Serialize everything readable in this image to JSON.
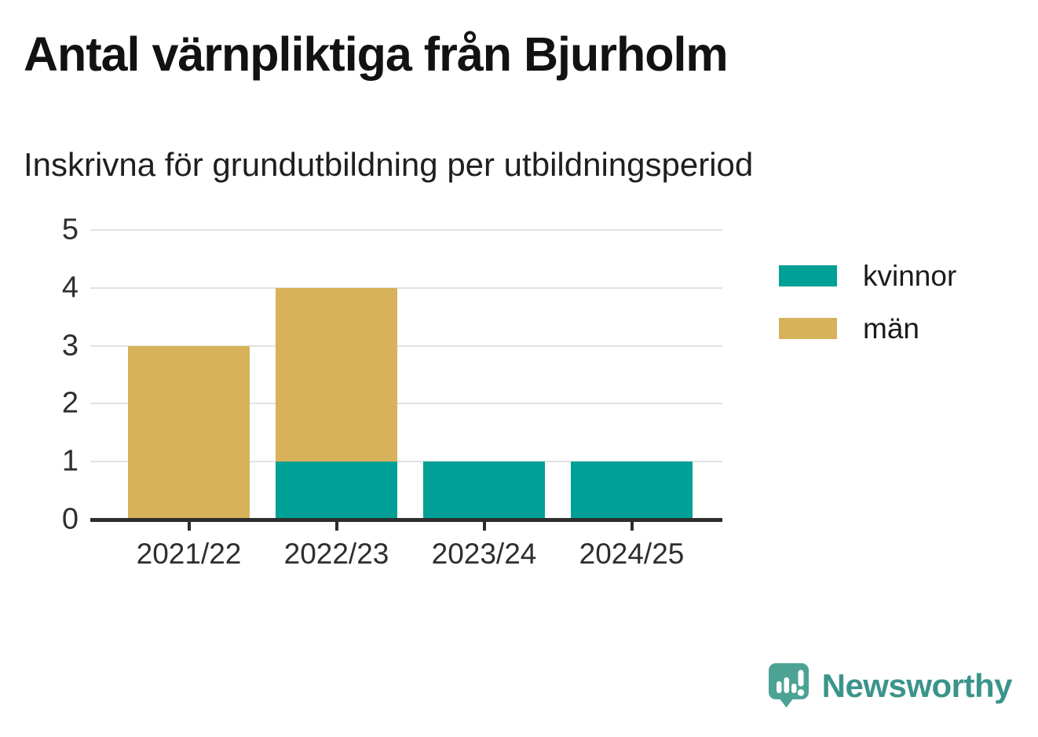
{
  "header": {
    "title": "Antal värnpliktiga från Bjurholm",
    "subtitle": "Inskrivna för grundutbildning per utbildningsperiod"
  },
  "chart_data": {
    "type": "bar",
    "stacked": true,
    "title": "Antal värnpliktiga från Bjurholm",
    "subtitle": "Inskrivna för grundutbildning per utbildningsperiod",
    "categories": [
      "2021/22",
      "2022/23",
      "2023/24",
      "2024/25"
    ],
    "series": [
      {
        "name": "kvinnor",
        "color": "#00a096",
        "values": [
          0,
          1,
          1,
          1
        ]
      },
      {
        "name": "män",
        "color": "#d8b25a",
        "values": [
          3,
          3,
          0,
          0
        ]
      }
    ],
    "totals": [
      3,
      4,
      1,
      1
    ],
    "xlabel": "",
    "ylabel": "",
    "ylim": [
      0,
      5
    ],
    "yticks": [
      0,
      1,
      2,
      3,
      4,
      5
    ],
    "grid": true,
    "legend_position": "right",
    "axis_color": "#2d2d2d",
    "gridline_color": "#e2e2e2"
  },
  "legend": {
    "items": [
      {
        "label": "kvinnor",
        "color": "#00a096"
      },
      {
        "label": "män",
        "color": "#d8b25a"
      }
    ]
  },
  "footer": {
    "brand": "Newsworthy",
    "brand_color": "#3a948a",
    "logo_bubble_color": "#4ca394",
    "logo_glyph_color": "#ffffff"
  }
}
